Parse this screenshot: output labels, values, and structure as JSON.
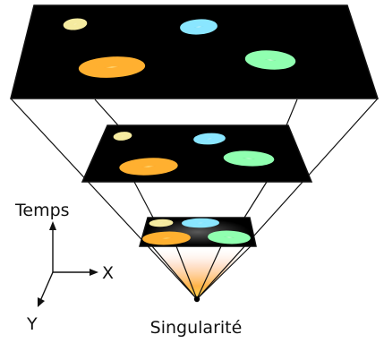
{
  "labels": {
    "time_axis": "Temps",
    "x_axis": "X",
    "y_axis": "Y",
    "origin": "Singularité"
  },
  "colors": {
    "background": "#ffffff",
    "panel": "#000000",
    "outline": "#111111",
    "glow_core": "#ffd84a",
    "glow_edge": "#ff8a3a"
  },
  "galaxies": [
    {
      "name": "yellow-galaxy",
      "color": "#f2e07a"
    },
    {
      "name": "cyan-galaxy",
      "color": "#4fd3f0"
    },
    {
      "name": "orange-galaxy",
      "color": "#ff8a1c"
    },
    {
      "name": "green-galaxy",
      "color": "#3de07a"
    }
  ]
}
